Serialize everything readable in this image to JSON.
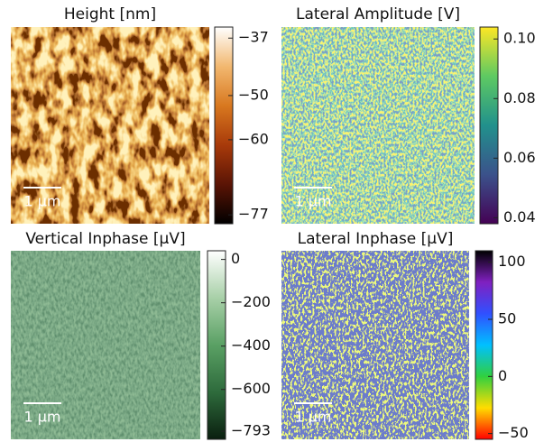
{
  "panels": [
    {
      "title": "Height [nm]",
      "scale_bar": "1 μm",
      "colorbar": {
        "colors": [
          "#000000",
          "#5a1405",
          "#a83a0a",
          "#d8781f",
          "#f2b870",
          "#ffffff"
        ],
        "lim": [
          -79,
          -34.5
        ],
        "ticks": [
          {
            "value": -37,
            "label": "−37"
          },
          {
            "value": -50,
            "label": "−50"
          },
          {
            "value": -60,
            "label": "−60"
          },
          {
            "value": -77,
            "label": "−77"
          }
        ]
      }
    },
    {
      "title": "Lateral Amplitude [V]",
      "scale_bar": "1 μm",
      "colorbar": {
        "colors": [
          "#440154",
          "#3b528b",
          "#21918c",
          "#5ec962",
          "#fde725"
        ],
        "lim": [
          0.038,
          0.104
        ],
        "ticks": [
          {
            "value": 0.1,
            "label": "0.10"
          },
          {
            "value": 0.08,
            "label": "0.08"
          },
          {
            "value": 0.06,
            "label": "0.06"
          },
          {
            "value": 0.04,
            "label": "0.04"
          }
        ]
      }
    },
    {
      "title": "Vertical Inphase [μV]",
      "scale_bar": "1 μm",
      "colorbar": {
        "colors": [
          "#0a1f0f",
          "#2e6b3c",
          "#5aa064",
          "#a8d0a8",
          "#ffffff"
        ],
        "lim": [
          -830,
          40
        ],
        "ticks": [
          0,
          {
            "value": -200,
            "label": "−200"
          },
          {
            "value": -400,
            "label": "−400"
          },
          {
            "value": -600,
            "label": "−600"
          },
          {
            "value": -793,
            "label": "−793"
          }
        ]
      }
    },
    {
      "title": "Lateral Inphase [μV]",
      "scale_bar": "1 μm",
      "colorbar": {
        "colors": [
          "#ff0000",
          "#ffdd00",
          "#30d040",
          "#00c0ff",
          "#3050ff",
          "#8020c0",
          "#000000"
        ],
        "lim": [
          -55,
          110
        ],
        "ticks": [
          100,
          50,
          0,
          {
            "value": -50,
            "label": "−50"
          }
        ]
      }
    }
  ]
}
